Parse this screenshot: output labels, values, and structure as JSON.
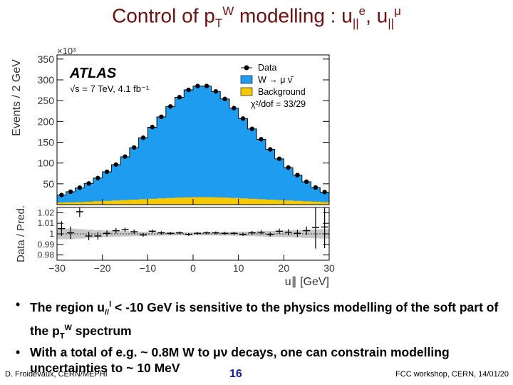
{
  "slide": {
    "title_pre": "Control of p",
    "title_sub_T": "T",
    "title_sup_W": "W",
    "title_mid": " modelling : u",
    "title_sub_par1": "||",
    "title_sup_e": "e",
    "title_comma": ", u",
    "title_sub_par2": "||",
    "title_sup_mu": "μ",
    "bullet1_a": "The region u",
    "bullet1_sub": "//",
    "bullet1_sup": "l",
    "bullet1_b": " < -10 GeV is sensitive to the physics modelling of the soft part of the p",
    "bullet1_sub2": "T",
    "bullet1_sup2": "W",
    "bullet1_c": " spectrum",
    "bullet2": "With a total of e.g. ~ 0.8M W to μν decays, one can constrain modelling uncertainties to ~ 10 MeV",
    "footer_left": "D. Froidevaux, CERN/MEPHI",
    "page_number": "16",
    "footer_right": "FCC workshop, CERN, 14/01/20"
  },
  "colors": {
    "title": "#6a1212",
    "signal": "#1e9cf0",
    "background": "#f5c800",
    "uncertainty_band": "#c8c8c8",
    "page_number": "#1c1c8c"
  },
  "chart_data": {
    "type": "bar",
    "atlas_label": "ATLAS",
    "energy_label": "√s = 7 TeV, 4.1 fb⁻¹",
    "exponent_label": "×10³",
    "ylabel_main": "Events / 2 GeV",
    "ylabel_ratio": "Data / Pred.",
    "xlabel": "u∥ [GeV]",
    "legend": [
      "Data",
      "W → μ ν̄",
      "Background",
      "χ²/dof = 33/29"
    ],
    "legend_position": "top-right",
    "x_range": [
      -30,
      30
    ],
    "bin_width": 2,
    "y_range_main": [
      0,
      360
    ],
    "y_ticks_main": [
      50,
      100,
      150,
      200,
      250,
      300,
      350
    ],
    "y_range_ratio": [
      0.975,
      1.025
    ],
    "y_ticks_ratio": [
      0.98,
      0.99,
      1,
      1.01,
      1.02
    ],
    "x_ticks": [
      -30,
      -20,
      -10,
      0,
      10,
      20,
      30
    ],
    "bin_centers": [
      -29,
      -27,
      -25,
      -23,
      -21,
      -19,
      -17,
      -15,
      -13,
      -11,
      -9,
      -7,
      -5,
      -3,
      -1,
      1,
      3,
      5,
      7,
      9,
      11,
      13,
      15,
      17,
      19,
      21,
      23,
      25,
      27,
      29
    ],
    "prediction_total": [
      23,
      31,
      40,
      51,
      64,
      79,
      96,
      115,
      137,
      161,
      186,
      211,
      236,
      258,
      276,
      285,
      285,
      272,
      254,
      232,
      207,
      182,
      157,
      133,
      110,
      89,
      71,
      55,
      41,
      30
    ],
    "background": [
      5,
      5.5,
      6,
      7,
      8,
      9,
      10,
      11,
      12,
      13,
      14,
      15,
      16,
      17,
      17.5,
      18,
      18,
      17.5,
      17,
      16,
      15,
      14,
      13,
      12,
      11,
      10,
      9,
      8,
      7,
      6
    ],
    "data_ratio": [
      1.005,
      1.001,
      1.021,
      0.998,
      0.998,
      1.0005,
      1.003,
      1.004,
      1.002,
      0.999,
      1.0025,
      1.001,
      1.0005,
      1.001,
      0.9995,
      1.0005,
      1.001,
      1.001,
      1.0005,
      1.0005,
      0.9995,
      1.001,
      1.0015,
      0.9995,
      1.0025,
      1.0015,
      1.0005,
      1.003,
      1.006,
      1.0065
    ],
    "ratio_errors": [
      0.007,
      0.006,
      0.005,
      0.004,
      0.0035,
      0.003,
      0.0025,
      0.002,
      0.002,
      0.0018,
      0.0016,
      0.0015,
      0.0014,
      0.0013,
      0.0013,
      0.0013,
      0.0013,
      0.0013,
      0.0014,
      0.0015,
      0.0016,
      0.0018,
      0.002,
      0.002,
      0.0025,
      0.003,
      0.0035,
      0.004,
      0.02,
      0.02
    ],
    "band_halfwidth": [
      0.005,
      0.005,
      0.0045,
      0.004,
      0.0035,
      0.003,
      0.0028,
      0.0025,
      0.0022,
      0.002,
      0.0018,
      0.0017,
      0.0016,
      0.0015,
      0.0015,
      0.0015,
      0.0015,
      0.0016,
      0.0017,
      0.0018,
      0.002,
      0.0022,
      0.0025,
      0.0028,
      0.003,
      0.0032,
      0.0035,
      0.004,
      0.0042,
      0.0045
    ]
  }
}
